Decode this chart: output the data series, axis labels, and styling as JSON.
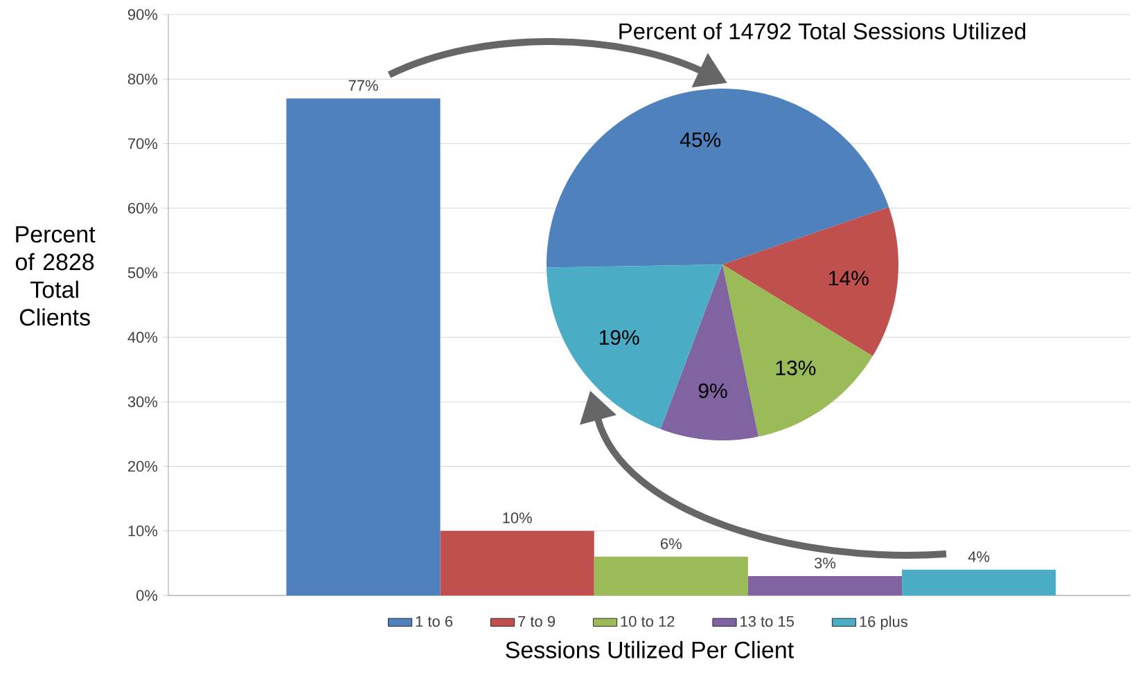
{
  "chart_data": [
    {
      "type": "bar",
      "xlabel": "Sessions Utilized Per Client",
      "ylabel": "Percent of 2828 Total Clients",
      "categories": [
        null
      ],
      "series": [
        {
          "name": "1 to 6",
          "color": "#4f81bd",
          "values": [
            77
          ],
          "value_labels": [
            "77%"
          ]
        },
        {
          "name": "7 to 9",
          "color": "#c0504d",
          "values": [
            10
          ],
          "value_labels": [
            "10%"
          ]
        },
        {
          "name": "10 to 12",
          "color": "#9bbb59",
          "values": [
            6
          ],
          "value_labels": [
            "6%"
          ]
        },
        {
          "name": "13 to 15",
          "color": "#8064a2",
          "values": [
            3
          ],
          "value_labels": [
            "3%"
          ]
        },
        {
          "name": "16 plus",
          "color": "#4bacc6",
          "values": [
            4
          ],
          "value_labels": [
            "4%"
          ]
        }
      ],
      "ylim": [
        0,
        90
      ],
      "yticks": [
        {
          "value": 0,
          "label": "0%"
        },
        {
          "value": 10,
          "label": "10%"
        },
        {
          "value": 20,
          "label": "20%"
        },
        {
          "value": 30,
          "label": "30%"
        },
        {
          "value": 40,
          "label": "40%"
        },
        {
          "value": 50,
          "label": "50%"
        },
        {
          "value": 60,
          "label": "60%"
        },
        {
          "value": 70,
          "label": "70%"
        },
        {
          "value": 80,
          "label": "80%"
        },
        {
          "value": 90,
          "label": "90%"
        }
      ],
      "grid": "y",
      "legend": "bottom"
    },
    {
      "type": "pie",
      "title": "Percent of 14792 Total Sessions Utilized",
      "categories": [
        null,
        null,
        null,
        null,
        null
      ],
      "values": [
        45,
        14,
        13,
        9,
        19
      ],
      "colors": [
        "#4f81bd",
        "#c0504d",
        "#9bbb59",
        "#8064a2",
        "#4bacc6"
      ],
      "value_labels": [
        "45%",
        "14%",
        "13%",
        "9%",
        "19%"
      ]
    }
  ]
}
